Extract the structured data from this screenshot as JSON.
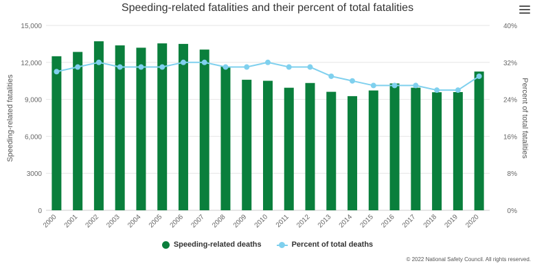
{
  "chart_data": {
    "type": "bar",
    "title": "Speeding-related fatalities and their percent of total fatalities",
    "categories": [
      "2000",
      "2001",
      "2002",
      "2003",
      "2004",
      "2005",
      "2006",
      "2007",
      "2008",
      "2009",
      "2010",
      "2011",
      "2012",
      "2013",
      "2014",
      "2015",
      "2016",
      "2017",
      "2018",
      "2019",
      "2020"
    ],
    "series": [
      {
        "name": "Speeding-related deaths",
        "type": "bar",
        "axis": "left",
        "color": "#0a7f3c",
        "values": [
          12500,
          12850,
          13713,
          13380,
          13192,
          13543,
          13500,
          13040,
          11674,
          10591,
          10508,
          9944,
          10329,
          9613,
          9262,
          9723,
          10291,
          9947,
          9579,
          9592,
          11258
        ]
      },
      {
        "name": "Percent of total deaths",
        "type": "line",
        "axis": "right",
        "color": "#7fd0ee",
        "values": [
          30,
          31,
          32,
          31,
          31,
          31,
          32,
          32,
          31,
          31,
          32,
          31,
          31,
          29,
          28,
          27,
          27,
          27,
          26,
          26,
          29
        ]
      }
    ],
    "ylabel": "Speeding-related fatalities",
    "ylabel_right": "Percent of total fatalities",
    "ylim": [
      0,
      15000
    ],
    "ylim_right": [
      0,
      40
    ],
    "yticks": [
      "0",
      "3000",
      "6,000",
      "9,000",
      "12,000",
      "15,000"
    ],
    "yticks_right": [
      "0%",
      "8%",
      "16%",
      "24%",
      "32%",
      "40%"
    ],
    "legend_position": "bottom-center",
    "grid": true
  },
  "credit": "© 2022 National Safety Council. All rights reserved.",
  "menu_icon": "hamburger-menu-icon"
}
